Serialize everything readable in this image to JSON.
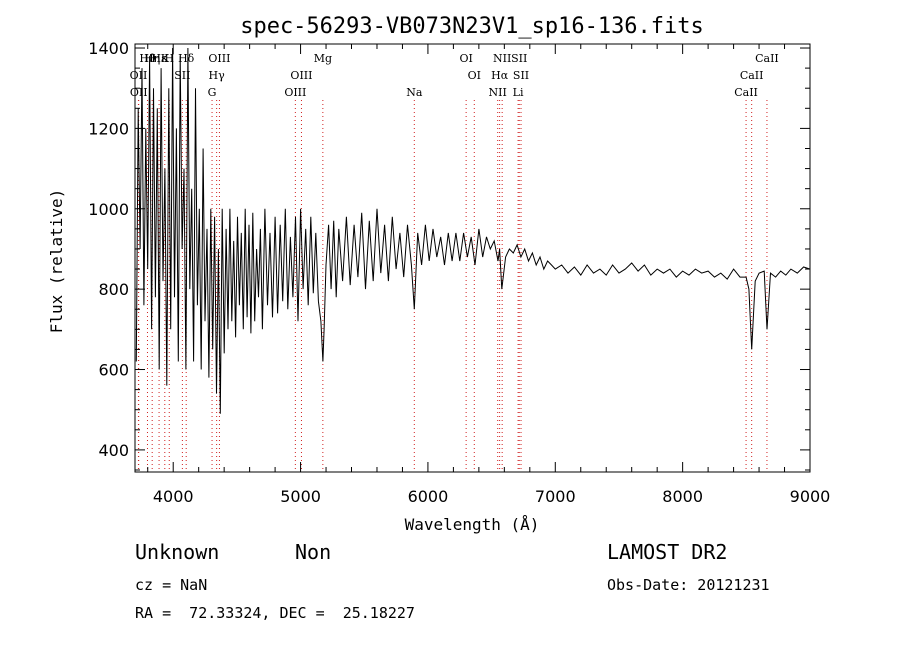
{
  "chart_data": {
    "type": "line",
    "title": "spec-56293-VB073N23V1_sp16-136.fits",
    "xlabel": "Wavelength (Å)",
    "ylabel": "Flux (relative)",
    "xlim": [
      3700,
      9000
    ],
    "ylim": [
      345,
      1410
    ],
    "x_ticks": [
      4000,
      5000,
      6000,
      7000,
      8000,
      9000
    ],
    "y_ticks": [
      400,
      600,
      800,
      1000,
      1200,
      1400
    ],
    "series": [
      {
        "color": "#000000",
        "x": [
          3710,
          3725,
          3740,
          3755,
          3770,
          3785,
          3800,
          3815,
          3830,
          3845,
          3860,
          3875,
          3890,
          3905,
          3920,
          3935,
          3950,
          3965,
          3980,
          3995,
          4010,
          4025,
          4040,
          4055,
          4070,
          4085,
          4100,
          4115,
          4130,
          4145,
          4160,
          4175,
          4190,
          4205,
          4220,
          4235,
          4250,
          4265,
          4280,
          4295,
          4310,
          4325,
          4340,
          4355,
          4370,
          4385,
          4400,
          4415,
          4430,
          4445,
          4460,
          4475,
          4490,
          4505,
          4520,
          4535,
          4550,
          4565,
          4580,
          4595,
          4610,
          4625,
          4640,
          4655,
          4670,
          4685,
          4700,
          4720,
          4740,
          4760,
          4780,
          4800,
          4820,
          4840,
          4860,
          4880,
          4900,
          4920,
          4940,
          4960,
          4980,
          5000,
          5020,
          5040,
          5060,
          5080,
          5100,
          5120,
          5140,
          5160,
          5175,
          5185,
          5200,
          5220,
          5240,
          5260,
          5280,
          5300,
          5330,
          5360,
          5390,
          5420,
          5450,
          5480,
          5510,
          5540,
          5570,
          5600,
          5630,
          5660,
          5690,
          5720,
          5750,
          5780,
          5810,
          5840,
          5870,
          5893,
          5920,
          5950,
          5980,
          6010,
          6040,
          6070,
          6100,
          6130,
          6160,
          6190,
          6220,
          6250,
          6280,
          6310,
          6340,
          6370,
          6400,
          6430,
          6460,
          6490,
          6520,
          6550,
          6563,
          6580,
          6610,
          6640,
          6670,
          6700,
          6730,
          6760,
          6790,
          6820,
          6850,
          6880,
          6910,
          6940,
          6970,
          7000,
          7050,
          7100,
          7150,
          7200,
          7250,
          7300,
          7350,
          7400,
          7450,
          7500,
          7550,
          7600,
          7650,
          7700,
          7750,
          7800,
          7850,
          7900,
          7950,
          8000,
          8050,
          8100,
          8150,
          8200,
          8250,
          8300,
          8350,
          8400,
          8450,
          8498,
          8520,
          8542,
          8570,
          8600,
          8640,
          8662,
          8690,
          8730,
          8770,
          8810,
          8850,
          8900,
          8950,
          9000
        ],
        "y": [
          620,
          1250,
          900,
          1350,
          760,
          1200,
          850,
          1380,
          700,
          1300,
          780,
          1250,
          600,
          1350,
          820,
          1100,
          560,
          1300,
          700,
          1400,
          780,
          1200,
          620,
          1380,
          900,
          1100,
          600,
          1400,
          800,
          1050,
          620,
          1300,
          760,
          1000,
          600,
          1150,
          720,
          950,
          580,
          1000,
          650,
          980,
          540,
          900,
          490,
          1000,
          640,
          950,
          700,
          1000,
          720,
          920,
          680,
          980,
          760,
          940,
          700,
          1000,
          730,
          960,
          690,
          990,
          720,
          900,
          780,
          950,
          700,
          1000,
          760,
          940,
          730,
          980,
          740,
          960,
          770,
          1000,
          750,
          930,
          780,
          980,
          720,
          1000,
          800,
          950,
          760,
          980,
          790,
          940,
          770,
          720,
          620,
          700,
          860,
          960,
          800,
          970,
          780,
          950,
          820,
          980,
          810,
          960,
          830,
          990,
          800,
          970,
          820,
          1000,
          840,
          960,
          820,
          980,
          850,
          940,
          830,
          960,
          860,
          750,
          940,
          860,
          960,
          870,
          950,
          880,
          930,
          860,
          940,
          870,
          940,
          870,
          940,
          880,
          930,
          860,
          950,
          880,
          930,
          900,
          920,
          870,
          900,
          800,
          880,
          900,
          890,
          910,
          880,
          900,
          870,
          890,
          860,
          880,
          850,
          870,
          860,
          850,
          860,
          840,
          855,
          835,
          860,
          840,
          850,
          835,
          860,
          840,
          850,
          865,
          845,
          860,
          835,
          850,
          840,
          850,
          830,
          845,
          835,
          850,
          840,
          845,
          830,
          840,
          825,
          850,
          830,
          830,
          800,
          650,
          820,
          840,
          845,
          700,
          840,
          830,
          845,
          835,
          850,
          840,
          855,
          850
        ]
      }
    ],
    "line_markers": [
      {
        "label": "Hθ",
        "x": 3798,
        "row": 0
      },
      {
        "label": "OII",
        "x": 3727,
        "row": 1
      },
      {
        "label": "OII",
        "x": 3729,
        "row": 2
      },
      {
        "label": "Hη",
        "x": 3835,
        "row": 0
      },
      {
        "label": "Hε",
        "x": 3889,
        "row": 0
      },
      {
        "label": "K",
        "x": 3934,
        "row": 0
      },
      {
        "label": "H",
        "x": 3969,
        "row": 0
      },
      {
        "label": "Hδ",
        "x": 4102,
        "row": 0
      },
      {
        "label": "SII",
        "x": 4072,
        "row": 1
      },
      {
        "label": "OIII",
        "x": 4363,
        "row": 0
      },
      {
        "label": "Hγ",
        "x": 4341,
        "row": 1
      },
      {
        "label": "G",
        "x": 4305,
        "row": 2
      },
      {
        "label": "Mg",
        "x": 5175,
        "row": 0
      },
      {
        "label": "OIII",
        "x": 5007,
        "row": 1
      },
      {
        "label": "OIII",
        "x": 4959,
        "row": 2
      },
      {
        "label": "Na",
        "x": 5893,
        "row": 2
      },
      {
        "label": "OI",
        "x": 6300,
        "row": 0
      },
      {
        "label": "OI",
        "x": 6364,
        "row": 1
      },
      {
        "label": "NII",
        "x": 6583,
        "row": 0
      },
      {
        "label": "Hα",
        "x": 6563,
        "row": 1
      },
      {
        "label": "NII",
        "x": 6548,
        "row": 2
      },
      {
        "label": "SII",
        "x": 6717,
        "row": 0
      },
      {
        "label": "SII",
        "x": 6731,
        "row": 1
      },
      {
        "label": "Li",
        "x": 6708,
        "row": 2
      },
      {
        "label": "CaII",
        "x": 8662,
        "row": 0
      },
      {
        "label": "CaII",
        "x": 8542,
        "row": 1
      },
      {
        "label": "CaII",
        "x": 8498,
        "row": 2
      }
    ]
  },
  "footer": {
    "classification": "Unknown",
    "subclass": "Non",
    "survey": "LAMOST DR2",
    "cz": "cz = NaN",
    "obs_date": "Obs-Date: 20121231",
    "coords": "RA =  72.33324, DEC =  25.18227"
  }
}
